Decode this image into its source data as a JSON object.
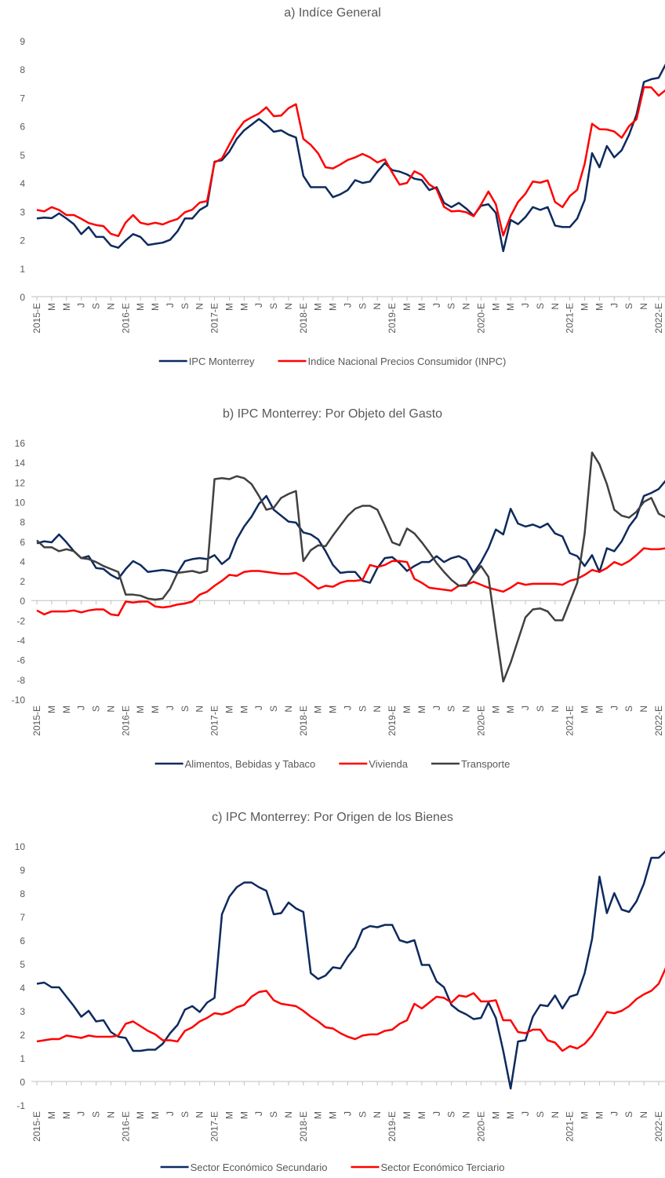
{
  "chart_data": [
    {
      "type": "line",
      "title": "a) Indíce General",
      "categories": [
        "2015-E",
        null,
        "M",
        null,
        "M",
        null,
        "J",
        null,
        "S",
        null,
        "N",
        null,
        "2016-E",
        null,
        "M",
        null,
        "M",
        null,
        "J",
        null,
        "S",
        null,
        "N",
        null,
        "2017-E",
        null,
        "M",
        null,
        "M",
        null,
        "J",
        null,
        "S",
        null,
        "N",
        null,
        "2018-E",
        null,
        "M",
        null,
        "M",
        null,
        "J",
        null,
        "S",
        null,
        "N",
        null,
        "2019-E",
        null,
        "M",
        null,
        "M",
        null,
        "J",
        null,
        "S",
        null,
        "N",
        null,
        "2020-E",
        null,
        "M",
        null,
        "M",
        null,
        "J",
        null,
        "S",
        null,
        "N",
        null,
        "2021-E",
        null,
        "M",
        null,
        "M",
        null,
        "J",
        null,
        "S",
        null,
        "N",
        null,
        "2022-E",
        null
      ],
      "series": [
        {
          "name": "IPC Monterrey",
          "color": "#0d2a5e",
          "values": [
            2.75,
            2.78,
            2.76,
            2.93,
            2.75,
            2.55,
            2.2,
            2.45,
            2.1,
            2.1,
            1.8,
            1.72,
            1.98,
            2.2,
            2.1,
            1.82,
            1.86,
            1.9,
            2.0,
            2.3,
            2.75,
            2.75,
            3.05,
            3.2,
            4.75,
            4.8,
            5.1,
            5.55,
            5.85,
            6.05,
            6.25,
            6.05,
            5.8,
            5.85,
            5.7,
            5.6,
            4.25,
            3.85,
            3.85,
            3.85,
            3.5,
            3.6,
            3.75,
            4.1,
            4.0,
            4.05,
            4.4,
            4.7,
            4.45,
            4.4,
            4.3,
            4.15,
            4.1,
            3.75,
            3.85,
            3.3,
            3.15,
            3.3,
            3.1,
            2.85,
            3.2,
            3.25,
            2.95,
            1.6,
            2.7,
            2.55,
            2.8,
            3.15,
            3.05,
            3.15,
            2.5,
            2.45,
            2.45,
            2.75,
            3.4,
            5.05,
            4.55,
            5.3,
            4.9,
            5.15,
            5.7,
            6.4,
            7.55,
            7.65,
            7.7,
            8.2
          ]
        },
        {
          "name": "Indice Nacional Precios Consumidor (INPC)",
          "color": "#ff0000",
          "values": [
            3.05,
            3.0,
            3.15,
            3.05,
            2.87,
            2.87,
            2.74,
            2.59,
            2.52,
            2.48,
            2.21,
            2.13,
            2.61,
            2.87,
            2.6,
            2.54,
            2.6,
            2.54,
            2.65,
            2.73,
            2.97,
            3.06,
            3.31,
            3.36,
            4.72,
            4.86,
            5.35,
            5.82,
            6.16,
            6.31,
            6.44,
            6.66,
            6.35,
            6.37,
            6.63,
            6.77,
            5.55,
            5.34,
            5.04,
            4.55,
            4.51,
            4.65,
            4.81,
            4.9,
            5.02,
            4.9,
            4.72,
            4.83,
            4.37,
            3.94,
            4.0,
            4.41,
            4.28,
            3.95,
            3.78,
            3.16,
            3.0,
            3.02,
            2.97,
            2.83,
            3.24,
            3.7,
            3.25,
            2.15,
            2.84,
            3.33,
            3.62,
            4.05,
            4.01,
            4.09,
            3.33,
            3.15,
            3.54,
            3.76,
            4.67,
            6.08,
            5.89,
            5.88,
            5.81,
            5.59,
            6.0,
            6.24,
            7.37,
            7.36,
            7.07,
            7.28
          ]
        }
      ],
      "ylim": [
        0,
        9
      ],
      "yticks": [
        0,
        1,
        2,
        3,
        4,
        5,
        6,
        7,
        8,
        9
      ],
      "grid": false,
      "legend": "bottom"
    },
    {
      "type": "line",
      "title": "b) IPC Monterrey: Por Objeto del Gasto",
      "categories": [
        "2015-E",
        null,
        "M",
        null,
        "M",
        null,
        "J",
        null,
        "S",
        null,
        "N",
        null,
        "2016-E",
        null,
        "M",
        null,
        "M",
        null,
        "J",
        null,
        "S",
        null,
        "N",
        null,
        "2017-E",
        null,
        "M",
        null,
        "M",
        null,
        "J",
        null,
        "S",
        null,
        "N",
        null,
        "2018-E",
        null,
        "M",
        null,
        "M",
        null,
        "J",
        null,
        "S",
        null,
        "N",
        null,
        "2019-E",
        null,
        "M",
        null,
        "M",
        null,
        "J",
        null,
        "S",
        null,
        "N",
        null,
        "2020-E",
        null,
        "M",
        null,
        "M",
        null,
        "J",
        null,
        "S",
        null,
        "N",
        null,
        "2021-E",
        null,
        "M",
        null,
        "M",
        null,
        "J",
        null,
        "S",
        null,
        "N",
        null,
        "2022-E",
        null
      ],
      "series": [
        {
          "name": "Alimentos, Bebidas y Tabaco",
          "color": "#0d2a5e",
          "values": [
            5.8,
            6.0,
            5.9,
            6.7,
            5.9,
            5.0,
            4.3,
            4.5,
            3.3,
            3.2,
            2.6,
            2.2,
            3.2,
            4.0,
            3.6,
            2.9,
            3.0,
            3.1,
            3.0,
            2.8,
            4.0,
            4.2,
            4.3,
            4.2,
            4.6,
            3.7,
            4.3,
            6.2,
            7.5,
            8.5,
            9.8,
            10.6,
            9.2,
            8.6,
            8.0,
            7.9,
            6.9,
            6.7,
            6.2,
            5.0,
            3.6,
            2.8,
            2.9,
            2.9,
            2.0,
            1.8,
            3.3,
            4.3,
            4.4,
            3.8,
            3.0,
            3.5,
            3.9,
            3.9,
            4.5,
            3.9,
            4.3,
            4.5,
            4.1,
            2.8,
            3.9,
            5.3,
            7.2,
            6.7,
            9.3,
            7.8,
            7.5,
            7.7,
            7.4,
            7.8,
            6.8,
            6.5,
            4.8,
            4.5,
            3.5,
            4.6,
            2.9,
            5.3,
            5.0,
            6.0,
            7.5,
            8.5,
            10.6,
            10.9,
            11.3,
            12.2
          ]
        },
        {
          "name": "Vivienda",
          "color": "#ff0000",
          "values": [
            -1.0,
            -1.4,
            -1.1,
            -1.1,
            -1.1,
            -1.0,
            -1.2,
            -1.0,
            -0.9,
            -0.9,
            -1.4,
            -1.5,
            -0.1,
            -0.2,
            -0.1,
            -0.1,
            -0.6,
            -0.7,
            -0.6,
            -0.4,
            -0.3,
            -0.1,
            0.6,
            0.9,
            1.5,
            2.0,
            2.6,
            2.5,
            2.9,
            3.0,
            3.0,
            2.9,
            2.8,
            2.7,
            2.7,
            2.8,
            2.4,
            1.8,
            1.2,
            1.5,
            1.4,
            1.8,
            2.0,
            2.0,
            2.1,
            3.6,
            3.4,
            3.6,
            4.0,
            4.0,
            3.9,
            2.2,
            1.8,
            1.3,
            1.2,
            1.1,
            1.0,
            1.5,
            1.6,
            1.9,
            1.6,
            1.3,
            1.1,
            0.9,
            1.3,
            1.8,
            1.6,
            1.7,
            1.7,
            1.7,
            1.7,
            1.6,
            2.0,
            2.2,
            2.6,
            3.1,
            2.9,
            3.3,
            3.9,
            3.6,
            4.0,
            4.6,
            5.3,
            5.2,
            5.2,
            5.3
          ]
        },
        {
          "name": "Transporte",
          "color": "#404040",
          "values": [
            6.1,
            5.4,
            5.4,
            5.0,
            5.2,
            5.0,
            4.3,
            4.2,
            3.9,
            3.5,
            3.2,
            2.9,
            0.6,
            0.6,
            0.5,
            0.2,
            0.1,
            0.2,
            1.2,
            2.8,
            2.9,
            3.0,
            2.8,
            3.0,
            12.3,
            12.4,
            12.3,
            12.6,
            12.4,
            11.8,
            10.6,
            9.2,
            9.4,
            10.4,
            10.8,
            11.1,
            4.0,
            5.1,
            5.6,
            5.5,
            6.6,
            7.6,
            8.6,
            9.3,
            9.6,
            9.6,
            9.2,
            7.6,
            5.9,
            5.6,
            7.3,
            6.8,
            5.9,
            4.9,
            3.8,
            2.9,
            2.1,
            1.5,
            1.5,
            2.6,
            3.5,
            2.4,
            -3.0,
            -8.2,
            -6.3,
            -4.0,
            -1.7,
            -0.9,
            -0.8,
            -1.1,
            -2.0,
            -2.0,
            -0.1,
            1.8,
            6.8,
            15.0,
            13.8,
            11.8,
            9.2,
            8.6,
            8.4,
            9.0,
            10.0,
            10.4,
            8.8,
            8.4
          ]
        }
      ],
      "ylim": [
        -10,
        16
      ],
      "yticks": [
        -10,
        -8,
        -6,
        -4,
        -2,
        0,
        2,
        4,
        6,
        8,
        10,
        12,
        14,
        16
      ],
      "grid": false,
      "legend": "bottom"
    },
    {
      "type": "line",
      "title": "c) IPC Monterrey: Por Origen de los Bienes",
      "categories": [
        "2015-E",
        null,
        "M",
        null,
        "M",
        null,
        "J",
        null,
        "S",
        null,
        "N",
        null,
        "2016-E",
        null,
        "M",
        null,
        "M",
        null,
        "J",
        null,
        "S",
        null,
        "N",
        null,
        "2017-E",
        null,
        "M",
        null,
        "M",
        null,
        "J",
        null,
        "S",
        null,
        "N",
        null,
        "2018-E",
        null,
        "M",
        null,
        "M",
        null,
        "J",
        null,
        "S",
        null,
        "N",
        null,
        "2019-E",
        null,
        "M",
        null,
        "M",
        null,
        "J",
        null,
        "S",
        null,
        "N",
        null,
        "2020-E",
        null,
        "M",
        null,
        "M",
        null,
        "J",
        null,
        "S",
        null,
        "N",
        null,
        "2021-E",
        null,
        "M",
        null,
        "M",
        null,
        "J",
        null,
        "S",
        null,
        "N",
        null,
        "2022-E",
        null
      ],
      "series": [
        {
          "name": "Sector Económico Secundario",
          "color": "#0d2a5e",
          "values": [
            4.15,
            4.2,
            4.0,
            4.0,
            3.6,
            3.2,
            2.75,
            3.0,
            2.55,
            2.6,
            2.1,
            1.9,
            1.85,
            1.3,
            1.3,
            1.35,
            1.35,
            1.6,
            2.05,
            2.4,
            3.05,
            3.2,
            2.95,
            3.35,
            3.55,
            7.1,
            7.85,
            8.25,
            8.45,
            8.45,
            8.25,
            8.1,
            7.1,
            7.15,
            7.6,
            7.35,
            7.2,
            4.6,
            4.35,
            4.5,
            4.85,
            4.8,
            5.3,
            5.7,
            6.45,
            6.6,
            6.55,
            6.65,
            6.65,
            6.0,
            5.9,
            6.0,
            4.95,
            4.95,
            4.25,
            4.0,
            3.25,
            3.0,
            2.85,
            2.65,
            2.7,
            3.35,
            2.7,
            1.3,
            -0.3,
            1.7,
            1.75,
            2.75,
            3.25,
            3.2,
            3.65,
            3.1,
            3.6,
            3.7,
            4.6,
            6.05,
            8.7,
            7.15,
            8.0,
            7.3,
            7.2,
            7.65,
            8.4,
            9.5,
            9.5,
            9.8
          ]
        },
        {
          "name": "Sector Económico Terciario",
          "color": "#ff0000",
          "values": [
            1.7,
            1.75,
            1.8,
            1.8,
            1.95,
            1.9,
            1.85,
            1.95,
            1.9,
            1.9,
            1.9,
            1.95,
            2.45,
            2.55,
            2.35,
            2.15,
            2.0,
            1.75,
            1.75,
            1.7,
            2.15,
            2.3,
            2.55,
            2.7,
            2.9,
            2.85,
            2.95,
            3.15,
            3.25,
            3.6,
            3.8,
            3.85,
            3.45,
            3.3,
            3.25,
            3.2,
            3.0,
            2.75,
            2.55,
            2.3,
            2.25,
            2.05,
            1.9,
            1.8,
            1.95,
            2.0,
            2.0,
            2.15,
            2.2,
            2.45,
            2.6,
            3.3,
            3.1,
            3.35,
            3.6,
            3.55,
            3.35,
            3.65,
            3.6,
            3.75,
            3.4,
            3.4,
            3.45,
            2.6,
            2.6,
            2.1,
            2.05,
            2.2,
            2.2,
            1.75,
            1.65,
            1.3,
            1.5,
            1.4,
            1.6,
            1.95,
            2.45,
            2.95,
            2.9,
            3.0,
            3.2,
            3.5,
            3.7,
            3.85,
            4.15,
            4.85
          ]
        }
      ],
      "ylim": [
        -1,
        10
      ],
      "yticks": [
        -1,
        0,
        1,
        2,
        3,
        4,
        5,
        6,
        7,
        8,
        9,
        10
      ],
      "grid": false,
      "legend": "bottom"
    }
  ]
}
